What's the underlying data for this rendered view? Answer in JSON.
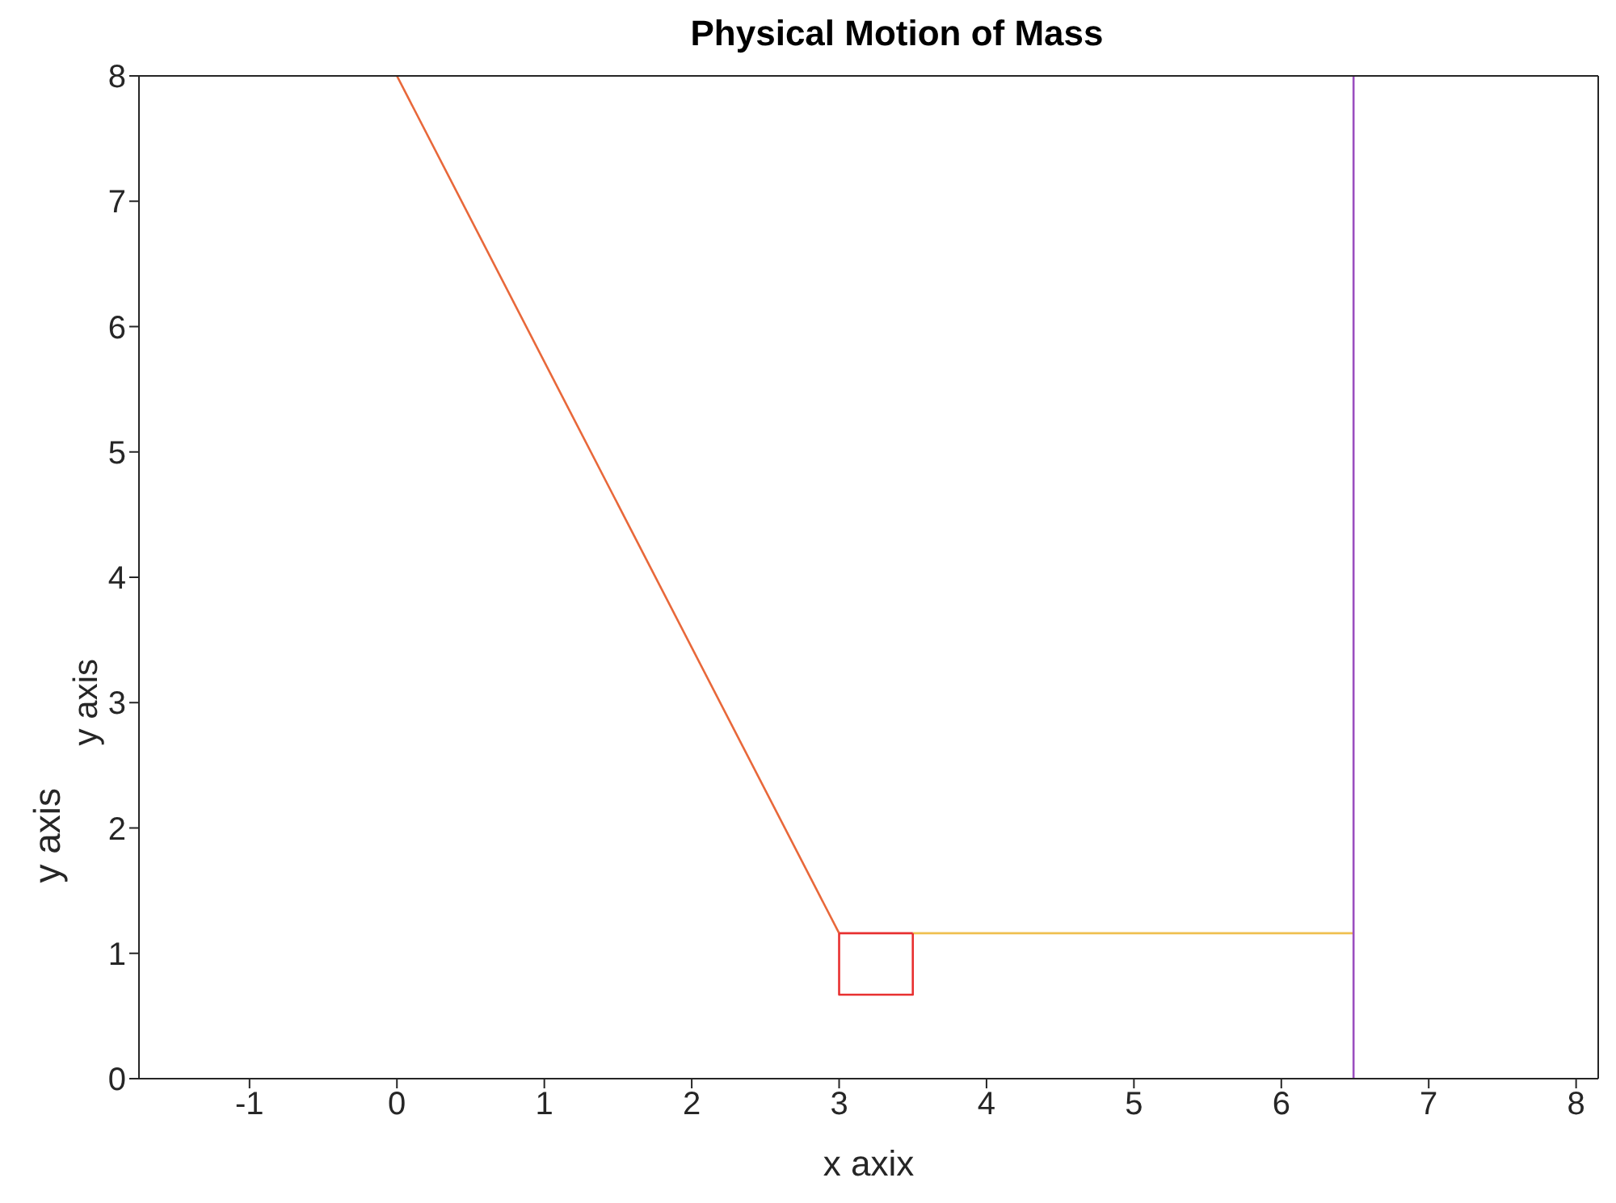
{
  "chart_data": {
    "type": "line",
    "title": "Physical Motion of Mass",
    "xlabel": "x axix",
    "ylabel": "y axis",
    "annotations": [
      "y axis"
    ],
    "xlim": [
      -1.75,
      8.15
    ],
    "xticks": [
      -1,
      0,
      1,
      2,
      3,
      4,
      5,
      6,
      7,
      8
    ],
    "ylim": [
      0,
      8
    ],
    "yticks": [
      0,
      1,
      2,
      3,
      4,
      5,
      6,
      7,
      8
    ],
    "grid": false,
    "marker": "none",
    "line_style": "solid",
    "series": [
      {
        "color": "#e8683a",
        "x": [
          0,
          3
        ],
        "values": [
          8,
          1.16
        ]
      },
      {
        "color": "#f0c050",
        "x": [
          3.5,
          6.49
        ],
        "values": [
          1.16,
          1.16
        ]
      },
      {
        "color": "#e83030",
        "x": [
          3,
          3,
          3.5,
          3.5
        ],
        "values": [
          1.16,
          0.67,
          0.67,
          1.16
        ]
      },
      {
        "color": "#e83030",
        "x": [
          3,
          3.5
        ],
        "values": [
          1.16,
          1.16
        ]
      },
      {
        "color": "#9b4fc0",
        "x": [
          6.49,
          6.49
        ],
        "values": [
          0,
          8
        ]
      }
    ]
  }
}
